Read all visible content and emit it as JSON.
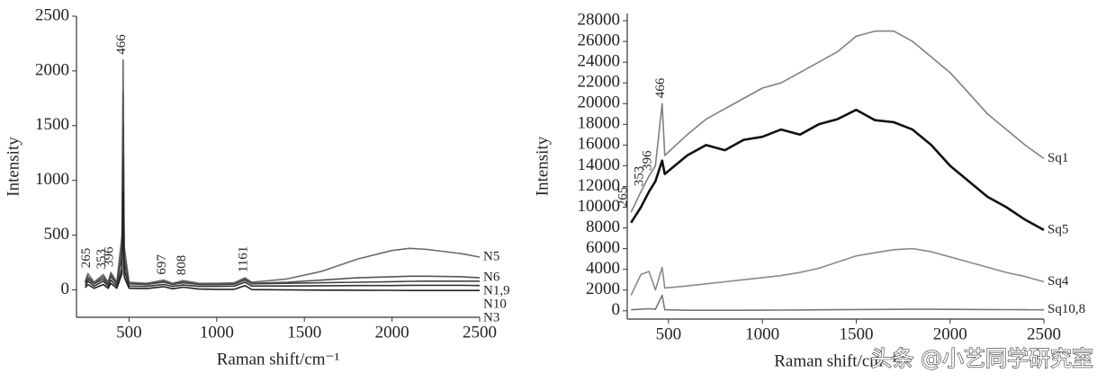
{
  "chart_data": [
    {
      "type": "line",
      "xlabel": "Raman shift/cm⁻¹",
      "ylabel": "Intensity",
      "xlim": [
        200,
        2500
      ],
      "ylim": [
        -250,
        2500
      ],
      "xticks": [
        500,
        1000,
        1500,
        2000,
        2500
      ],
      "yticks": [
        0,
        500,
        1000,
        1500,
        2000,
        2500
      ],
      "x": [
        250,
        265,
        300,
        353,
        380,
        396,
        430,
        460,
        466,
        472,
        500,
        600,
        697,
        750,
        808,
        900,
        1000,
        1100,
        1161,
        1200,
        1400,
        1600,
        1800,
        2000,
        2100,
        2200,
        2400,
        2500
      ],
      "series": [
        {
          "name": "N5",
          "color": "#6a6a6a",
          "values": [
            80,
            150,
            70,
            140,
            70,
            160,
            70,
            500,
            2100,
            400,
            70,
            60,
            90,
            60,
            85,
            60,
            60,
            65,
            110,
            70,
            100,
            170,
            280,
            360,
            380,
            370,
            330,
            300
          ]
        },
        {
          "name": "N6",
          "color": "#555555",
          "values": [
            70,
            120,
            60,
            120,
            60,
            140,
            60,
            400,
            1800,
            300,
            60,
            50,
            80,
            50,
            75,
            50,
            50,
            55,
            100,
            60,
            70,
            90,
            110,
            120,
            125,
            125,
            120,
            110
          ]
        },
        {
          "name": "N1,9",
          "color": "#444444",
          "values": [
            60,
            100,
            55,
            100,
            55,
            120,
            55,
            300,
            1500,
            250,
            55,
            50,
            70,
            50,
            65,
            50,
            50,
            52,
            90,
            55,
            60,
            65,
            70,
            75,
            78,
            80,
            80,
            80
          ]
        },
        {
          "name": "N10",
          "color": "#333333",
          "values": [
            40,
            80,
            35,
            80,
            35,
            90,
            35,
            200,
            1200,
            180,
            35,
            32,
            50,
            32,
            45,
            32,
            32,
            34,
            70,
            35,
            36,
            38,
            40,
            40,
            42,
            42,
            42,
            40
          ]
        },
        {
          "name": "N3",
          "color": "#222222",
          "values": [
            20,
            50,
            15,
            50,
            15,
            60,
            15,
            150,
            900,
            120,
            15,
            12,
            30,
            10,
            25,
            8,
            5,
            5,
            40,
            3,
            0,
            -2,
            -3,
            -4,
            -5,
            -5,
            -5,
            -5
          ]
        }
      ],
      "annotations": [
        "265",
        "353",
        "396",
        "466",
        "697",
        "808",
        "1161"
      ]
    },
    {
      "type": "line",
      "xlabel": "Raman shift/cm⁻¹",
      "ylabel": "Intensity",
      "xlim": [
        280,
        2500
      ],
      "ylim": [
        -800,
        28700
      ],
      "xticks": [
        500,
        1000,
        1500,
        2000,
        2500
      ],
      "yticks": [
        0,
        2000,
        4000,
        6000,
        8000,
        10000,
        12000,
        14000,
        16000,
        18000,
        20000,
        22000,
        24000,
        26000,
        28000
      ],
      "x": [
        300,
        353,
        396,
        430,
        466,
        480,
        600,
        700,
        800,
        900,
        1000,
        1100,
        1200,
        1300,
        1400,
        1500,
        1600,
        1700,
        1800,
        1900,
        2000,
        2100,
        2200,
        2300,
        2400,
        2500
      ],
      "series": [
        {
          "name": "Sq1",
          "color": "#808080",
          "values": [
            9500,
            11500,
            13000,
            14000,
            20000,
            15000,
            17000,
            18500,
            19500,
            20500,
            21500,
            22000,
            23000,
            24000,
            25000,
            26500,
            27000,
            27000,
            26000,
            24500,
            23000,
            21000,
            19000,
            17500,
            16000,
            14700
          ]
        },
        {
          "name": "Sq5",
          "color": "#111111",
          "values": [
            8500,
            10000,
            11500,
            12500,
            14500,
            13200,
            15000,
            16000,
            15500,
            16500,
            16800,
            17500,
            17000,
            18000,
            18500,
            19400,
            18400,
            18200,
            17500,
            16000,
            14000,
            12500,
            11000,
            10000,
            8800,
            7800
          ]
        },
        {
          "name": "Sq4",
          "color": "#8a8a8a",
          "values": [
            1500,
            3500,
            3800,
            2000,
            4200,
            2200,
            2400,
            2600,
            2800,
            3000,
            3200,
            3400,
            3700,
            4100,
            4700,
            5300,
            5600,
            5900,
            6000,
            5700,
            5200,
            4700,
            4200,
            3700,
            3300,
            2800
          ]
        },
        {
          "name": "Sq10,8",
          "color": "#777777",
          "values": [
            100,
            150,
            200,
            150,
            1500,
            100,
            50,
            50,
            50,
            50,
            60,
            70,
            80,
            90,
            100,
            120,
            130,
            140,
            150,
            150,
            140,
            130,
            120,
            110,
            100,
            90
          ]
        }
      ],
      "annotations": [
        "265",
        "353",
        "396",
        "466"
      ]
    }
  ],
  "watermark": "头条 @小艺同学研究室"
}
